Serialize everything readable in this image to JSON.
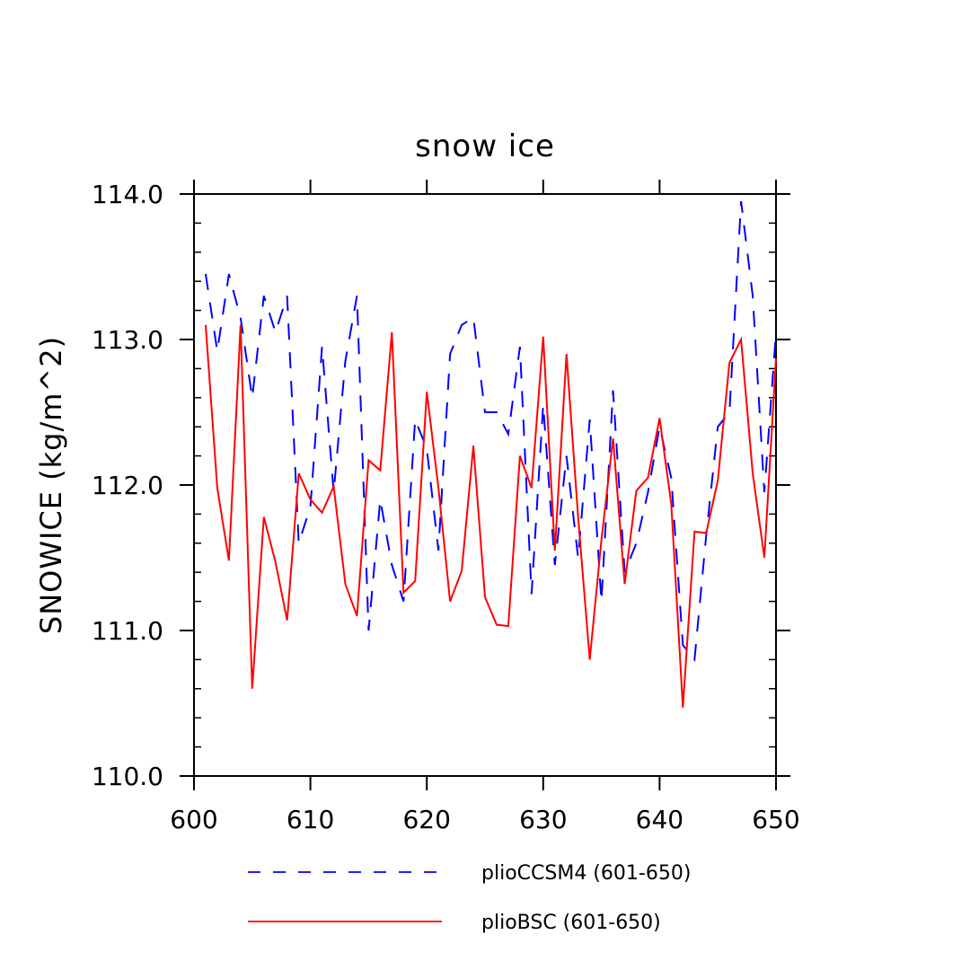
{
  "chart_data": {
    "type": "line",
    "title": "snow ice",
    "xlabel": "",
    "ylabel": "SNOWICE   (kg/m^2)",
    "xlim": [
      600,
      650
    ],
    "ylim": [
      110,
      114
    ],
    "x_ticks": [
      600,
      610,
      620,
      630,
      640,
      650
    ],
    "x_tick_labels": [
      "600",
      "610",
      "620",
      "630",
      "640",
      "650"
    ],
    "y_ticks": [
      110,
      111,
      112,
      113,
      114
    ],
    "y_tick_labels": [
      "110.0",
      "111.0",
      "112.0",
      "113.0",
      "114.0"
    ],
    "grid": false,
    "legend_position": "bottom",
    "x": [
      601,
      602,
      603,
      604,
      605,
      606,
      607,
      608,
      609,
      610,
      611,
      612,
      613,
      614,
      615,
      616,
      617,
      618,
      619,
      620,
      621,
      622,
      623,
      624,
      625,
      626,
      627,
      628,
      629,
      630,
      631,
      632,
      633,
      634,
      635,
      636,
      637,
      638,
      639,
      640,
      641,
      642,
      643,
      644,
      645,
      646,
      647,
      648,
      649,
      650
    ],
    "series": [
      {
        "name": "plioCCSM4 (601-650)",
        "color": "#0000ff",
        "style": "dashed",
        "values": [
          113.45,
          112.92,
          113.45,
          113.15,
          112.6,
          113.3,
          113.05,
          113.3,
          111.6,
          111.85,
          112.95,
          111.95,
          112.85,
          113.3,
          111.0,
          111.9,
          111.45,
          111.2,
          112.45,
          112.25,
          111.55,
          112.9,
          113.1,
          113.15,
          112.5,
          112.5,
          112.35,
          112.95,
          111.25,
          112.55,
          111.45,
          112.2,
          111.5,
          112.45,
          111.2,
          112.65,
          111.4,
          111.6,
          111.95,
          112.4,
          112.05,
          110.9,
          110.8,
          111.65,
          112.4,
          112.5,
          113.95,
          113.3,
          111.95,
          113.05
        ]
      },
      {
        "name": "plioBSC (601-650)",
        "color": "#ff0000",
        "style": "solid",
        "values": [
          113.1,
          111.98,
          111.48,
          113.1,
          110.6,
          111.78,
          111.47,
          111.07,
          112.08,
          111.9,
          111.81,
          111.99,
          111.32,
          111.1,
          112.17,
          112.1,
          113.05,
          111.26,
          111.34,
          112.64,
          111.98,
          111.2,
          111.41,
          112.27,
          111.23,
          111.04,
          111.03,
          112.2,
          111.98,
          113.02,
          111.55,
          112.9,
          111.78,
          110.8,
          111.62,
          112.32,
          111.32,
          111.96,
          112.05,
          112.46,
          111.87,
          110.47,
          111.68,
          111.67,
          112.03,
          112.84,
          113.0,
          112.08,
          111.5,
          112.87
        ]
      }
    ]
  }
}
